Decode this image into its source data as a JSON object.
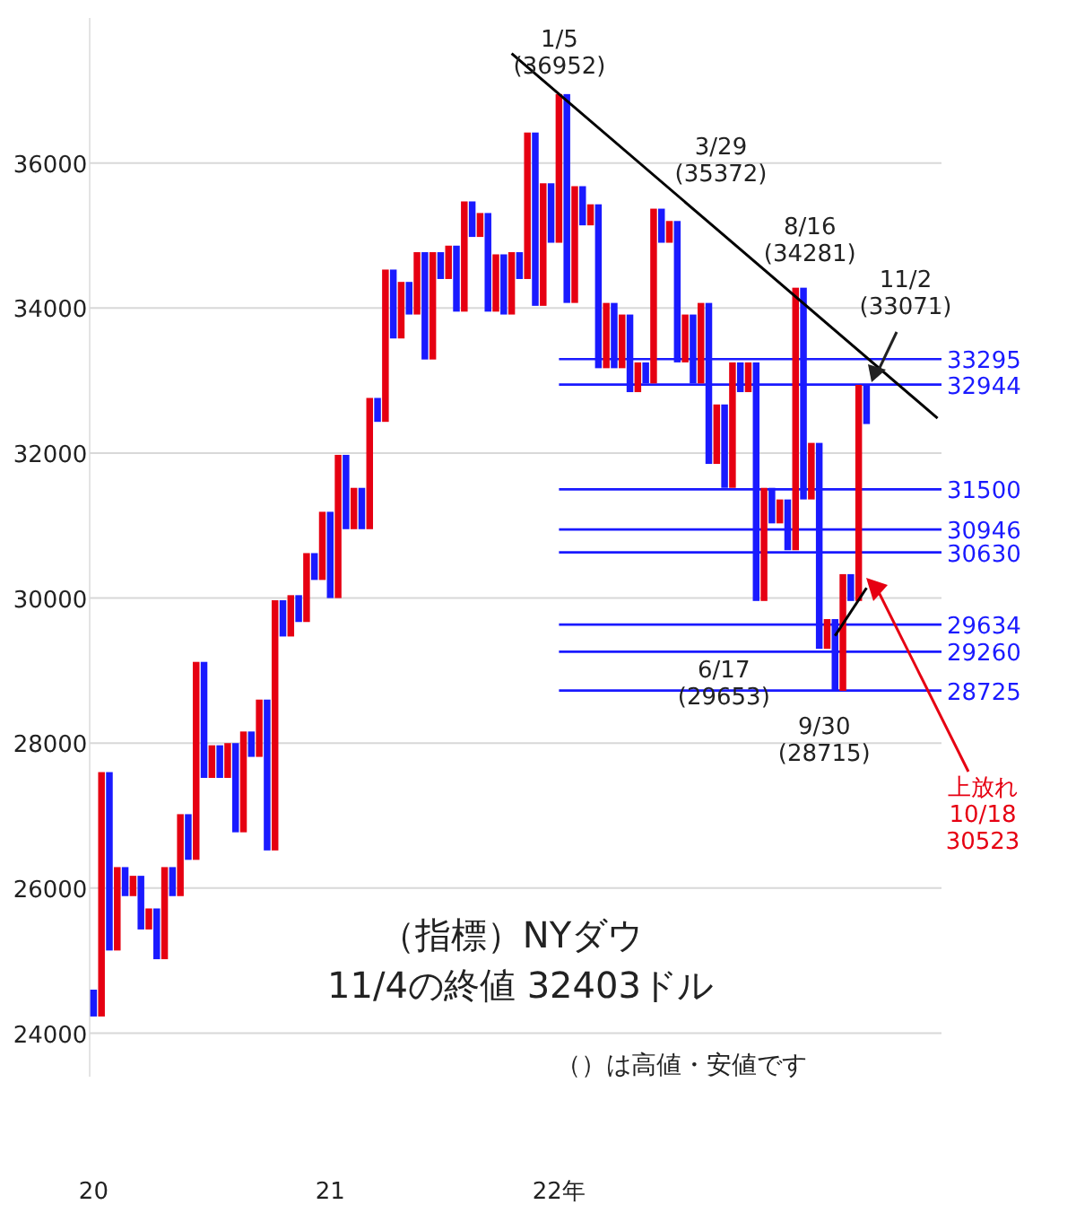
{
  "chart_data": {
    "type": "candlestick",
    "categories": [
      "20",
      null,
      null,
      null,
      null,
      null,
      null,
      null,
      null,
      null,
      null,
      null,
      null,
      null,
      null,
      null,
      null,
      null,
      null,
      null,
      null,
      null,
      null,
      null,
      null,
      null,
      null,
      null,
      null,
      null,
      "21",
      null,
      null,
      null,
      null,
      null,
      null,
      null,
      null,
      null,
      null,
      null,
      null,
      null,
      null,
      null,
      null,
      null,
      null,
      null,
      null,
      null,
      null,
      null,
      null,
      null,
      null,
      null,
      null,
      "22年",
      null,
      null,
      null,
      null,
      null,
      null,
      null,
      null,
      null,
      null,
      null,
      null,
      null,
      null,
      null,
      null,
      null,
      null,
      null,
      null,
      null,
      null,
      null,
      null,
      null,
      null,
      null,
      null,
      null,
      null,
      null,
      null,
      null,
      null,
      null,
      null,
      null,
      null,
      null,
      null,
      null,
      null,
      null,
      null,
      null,
      null,
      null,
      null
    ],
    "ohlc": [
      [
        24600,
        24600,
        24230,
        24230
      ],
      [
        24230,
        27600,
        24230,
        27600
      ],
      [
        27600,
        27600,
        25140,
        25140
      ],
      [
        25140,
        26290,
        25140,
        26290
      ],
      [
        26290,
        26290,
        25890,
        25890
      ],
      [
        25890,
        26170,
        25890,
        26170
      ],
      [
        26170,
        26170,
        25430,
        25430
      ],
      [
        25430,
        25720,
        25430,
        25720
      ],
      [
        25720,
        25720,
        25020,
        25020
      ],
      [
        25020,
        26290,
        25020,
        26290
      ],
      [
        26290,
        26290,
        25890,
        25890
      ],
      [
        25890,
        27020,
        25890,
        27020
      ],
      [
        27020,
        27020,
        26390,
        26390
      ],
      [
        26390,
        29120,
        26390,
        29120
      ],
      [
        29120,
        29120,
        27520,
        27520
      ],
      [
        27520,
        27970,
        27520,
        27970
      ],
      [
        27970,
        27970,
        27520,
        27520
      ],
      [
        27520,
        28000,
        27520,
        28000
      ],
      [
        28000,
        28000,
        26770,
        26770
      ],
      [
        26770,
        28160,
        26770,
        28160
      ],
      [
        28160,
        28160,
        27810,
        27810
      ],
      [
        27810,
        28600,
        27810,
        28600
      ],
      [
        28600,
        28600,
        26520,
        26520
      ],
      [
        26520,
        29970,
        26520,
        29970
      ],
      [
        29970,
        29970,
        29470,
        29470
      ],
      [
        29470,
        30040,
        29470,
        30040
      ],
      [
        30040,
        30040,
        29670,
        29670
      ],
      [
        29670,
        30620,
        29670,
        30620
      ],
      [
        30620,
        30620,
        30250,
        30250
      ],
      [
        30250,
        31190,
        30250,
        31190
      ],
      [
        31190,
        31190,
        30000,
        30000
      ],
      [
        30000,
        31975,
        30000,
        31975
      ],
      [
        31975,
        31975,
        30950,
        30950
      ],
      [
        30950,
        31520,
        30950,
        31520
      ],
      [
        31520,
        31520,
        30950,
        30950
      ],
      [
        30950,
        32760,
        30950,
        32760
      ],
      [
        32760,
        32760,
        32430,
        32430
      ],
      [
        32430,
        34530,
        32430,
        34530
      ],
      [
        34530,
        34530,
        33580,
        33580
      ],
      [
        33580,
        34360,
        33580,
        34360
      ],
      [
        34360,
        34360,
        33910,
        33910
      ],
      [
        33910,
        34770,
        33910,
        34770
      ],
      [
        34770,
        34770,
        33290,
        33290
      ],
      [
        33290,
        34770,
        33290,
        34770
      ],
      [
        34770,
        34770,
        34400,
        34400
      ],
      [
        34400,
        34860,
        34400,
        34860
      ],
      [
        34860,
        34860,
        33950,
        33950
      ],
      [
        33950,
        35470,
        33950,
        35470
      ],
      [
        35470,
        35470,
        34980,
        34980
      ],
      [
        34980,
        35310,
        34980,
        35310
      ],
      [
        35310,
        35310,
        33950,
        33950
      ],
      [
        33950,
        34740,
        33950,
        34740
      ],
      [
        34740,
        34740,
        33910,
        33910
      ],
      [
        33910,
        34770,
        33910,
        34770
      ],
      [
        34770,
        34770,
        34400,
        34400
      ],
      [
        34400,
        36420,
        34400,
        36420
      ],
      [
        36420,
        36420,
        34030,
        34030
      ],
      [
        34030,
        35720,
        34030,
        35720
      ],
      [
        35720,
        35720,
        34900,
        34900
      ],
      [
        34900,
        36950,
        34900,
        36950
      ],
      [
        36950,
        36950,
        34070,
        34070
      ],
      [
        34070,
        35680,
        34070,
        35680
      ],
      [
        35680,
        35680,
        35140,
        35140
      ],
      [
        35140,
        35430,
        35140,
        35430
      ],
      [
        35430,
        35430,
        33170,
        33170
      ],
      [
        33170,
        34070,
        33170,
        34070
      ],
      [
        34070,
        34070,
        33170,
        33170
      ],
      [
        33170,
        33910,
        33170,
        33910
      ],
      [
        33910,
        33910,
        32840,
        32840
      ],
      [
        32840,
        33250,
        32840,
        33250
      ],
      [
        33250,
        33250,
        32960,
        32960
      ],
      [
        32960,
        35370,
        32960,
        35370
      ],
      [
        35370,
        35370,
        34900,
        34900
      ],
      [
        34900,
        35200,
        34900,
        35200
      ],
      [
        35200,
        35200,
        33250,
        33250
      ],
      [
        33250,
        33910,
        33250,
        33910
      ],
      [
        33910,
        33910,
        32960,
        32960
      ],
      [
        32960,
        34070,
        32960,
        34070
      ],
      [
        34070,
        34070,
        31850,
        31850
      ],
      [
        31850,
        32670,
        31850,
        32670
      ],
      [
        32670,
        32670,
        31520,
        31520
      ],
      [
        31520,
        33250,
        31520,
        33250
      ],
      [
        33250,
        33250,
        32840,
        32840
      ],
      [
        32840,
        33250,
        32840,
        33250
      ],
      [
        33250,
        33250,
        29960,
        29960
      ],
      [
        29960,
        31520,
        29960,
        31520
      ],
      [
        31520,
        31520,
        31030,
        31030
      ],
      [
        31030,
        31360,
        31030,
        31360
      ],
      [
        31360,
        31360,
        30660,
        30660
      ],
      [
        30660,
        34280,
        30660,
        34280
      ],
      [
        34280,
        34280,
        31360,
        31360
      ],
      [
        31360,
        32140,
        31360,
        32140
      ],
      [
        32140,
        32140,
        29300,
        29300
      ],
      [
        29300,
        29710,
        29300,
        29710
      ],
      [
        29710,
        29710,
        28720,
        28720
      ],
      [
        28720,
        30330,
        28720,
        30330
      ],
      [
        30330,
        30330,
        29960,
        29960
      ],
      [
        29960,
        32940,
        29960,
        32940
      ],
      [
        32940,
        32940,
        32400,
        32400
      ],
      null,
      null,
      null,
      null,
      null,
      null,
      null,
      null,
      null
    ],
    "colors": [
      "#1a1aff",
      "#e60012",
      "#1a1aff",
      "#e60012",
      "#1a1aff",
      "#e60012",
      "#1a1aff",
      "#e60012",
      "#1a1aff",
      "#e60012",
      "#1a1aff",
      "#e60012",
      "#1a1aff",
      "#e60012",
      "#1a1aff",
      "#e60012",
      "#1a1aff",
      "#e60012",
      "#1a1aff",
      "#e60012",
      "#1a1aff",
      "#e60012",
      "#1a1aff",
      "#e60012",
      "#1a1aff",
      "#e60012",
      "#1a1aff",
      "#e60012",
      "#1a1aff",
      "#e60012",
      "#1a1aff",
      "#e60012",
      "#1a1aff",
      "#e60012",
      "#1a1aff",
      "#e60012",
      "#1a1aff",
      "#e60012",
      "#1a1aff",
      "#e60012",
      "#1a1aff",
      "#e60012",
      "#1a1aff",
      "#e60012",
      "#1a1aff",
      "#e60012",
      "#1a1aff",
      "#e60012",
      "#1a1aff",
      "#e60012",
      "#1a1aff",
      "#e60012",
      "#1a1aff",
      "#e60012",
      "#1a1aff",
      "#e60012",
      "#1a1aff",
      "#e60012",
      "#1a1aff",
      "#e60012",
      "#1a1aff",
      "#e60012",
      "#1a1aff",
      "#e60012",
      "#1a1aff",
      "#e60012",
      "#1a1aff",
      "#e60012",
      "#1a1aff",
      "#e60012",
      "#1a1aff",
      "#e60012",
      "#1a1aff",
      "#e60012",
      "#1a1aff",
      "#e60012",
      "#1a1aff",
      "#e60012",
      "#1a1aff",
      "#e60012",
      "#1a1aff",
      "#e60012",
      "#1a1aff",
      "#e60012",
      "#1a1aff",
      "#e60012",
      "#1a1aff",
      "#e60012",
      "#1a1aff",
      "#e60012",
      "#1a1aff",
      "#e60012",
      "#1a1aff",
      "#e60012",
      "#1a1aff",
      "#e60012",
      "#1a1aff",
      "#e60012",
      "#1a1aff",
      null,
      null,
      null,
      null,
      null,
      null,
      null,
      null,
      null
    ],
    "series": [
      {
        "type": "line",
        "color": "#000000",
        "values": [
          null,
          null,
          null,
          null,
          null,
          null,
          null,
          null,
          null,
          null,
          null,
          null,
          null,
          null,
          null,
          null,
          null,
          null,
          null,
          null,
          null,
          null,
          null,
          null,
          null,
          null,
          null,
          null,
          null,
          null,
          null,
          null,
          null,
          null,
          null,
          null,
          null,
          null,
          null,
          null,
          null,
          null,
          null,
          null,
          null,
          null,
          null,
          null,
          null,
          null,
          null,
          null,
          null,
          37510,
          null,
          null,
          null,
          null,
          null,
          null,
          null,
          null,
          null,
          null,
          null,
          null,
          null,
          null,
          null,
          null,
          null,
          null,
          null,
          null,
          null,
          null,
          null,
          null,
          null,
          null,
          null,
          null,
          null,
          null,
          null,
          null,
          null,
          null,
          null,
          null,
          null,
          null,
          null,
          null,
          null,
          null,
          null,
          null,
          null,
          null,
          null,
          null,
          null,
          null,
          null,
          null,
          null,
          32480
        ]
      },
      {
        "type": "line",
        "color": "#000000",
        "values": [
          null,
          null,
          null,
          null,
          null,
          null,
          null,
          null,
          null,
          null,
          null,
          null,
          null,
          null,
          null,
          null,
          null,
          null,
          null,
          null,
          null,
          null,
          null,
          null,
          null,
          null,
          null,
          null,
          null,
          null,
          null,
          null,
          null,
          null,
          null,
          null,
          null,
          null,
          null,
          null,
          null,
          null,
          null,
          null,
          null,
          null,
          null,
          null,
          null,
          null,
          null,
          null,
          null,
          null,
          null,
          null,
          null,
          null,
          null,
          null,
          null,
          null,
          null,
          null,
          null,
          null,
          null,
          null,
          null,
          null,
          null,
          null,
          null,
          null,
          null,
          null,
          null,
          null,
          null,
          null,
          null,
          null,
          null,
          null,
          null,
          null,
          null,
          null,
          null,
          null,
          null,
          null,
          null,
          null,
          29480,
          null,
          null,
          null,
          30140,
          null,
          null,
          null,
          null,
          null,
          null,
          null,
          null,
          null
        ]
      }
    ],
    "ylim": [
      23400,
      38000
    ],
    "yticks": [
      24000,
      26000,
      28000,
      30000,
      32000,
      34000,
      36000
    ],
    "grid": "y",
    "ref_lines": [
      {
        "axis": "y",
        "value": 33295,
        "label": "33295",
        "color": "#1a1aff"
      },
      {
        "axis": "y",
        "value": 32944,
        "label": "32944",
        "color": "#1a1aff"
      },
      {
        "axis": "y",
        "value": 31500,
        "label": "31500",
        "color": "#1a1aff"
      },
      {
        "axis": "y",
        "value": 30946,
        "label": "30946",
        "color": "#1a1aff"
      },
      {
        "axis": "y",
        "value": 30630,
        "label": "30630",
        "color": "#1a1aff"
      },
      {
        "axis": "y",
        "value": 29634,
        "label": "29634",
        "color": "#1a1aff"
      },
      {
        "axis": "y",
        "value": 29260,
        "label": "29260",
        "color": "#1a1aff"
      },
      {
        "axis": "y",
        "value": 28725,
        "label": "28725",
        "color": "#1a1aff"
      }
    ],
    "annotations": [
      {
        "text": "8/16\n(34281)",
        "y": 34281
      },
      {
        "text": "6/17\n(29653)",
        "y": 29653
      },
      {
        "text": "9/30\n(28715)",
        "y": 28715
      },
      "1/5\n(36952)",
      "3/29\n(35372)",
      "上放れ\n10/18\n30523",
      "11/2\n(33071)",
      "（指標）NYダウ",
      "11/4の終値 32403ドル",
      "（）は高値・安値です"
    ]
  }
}
